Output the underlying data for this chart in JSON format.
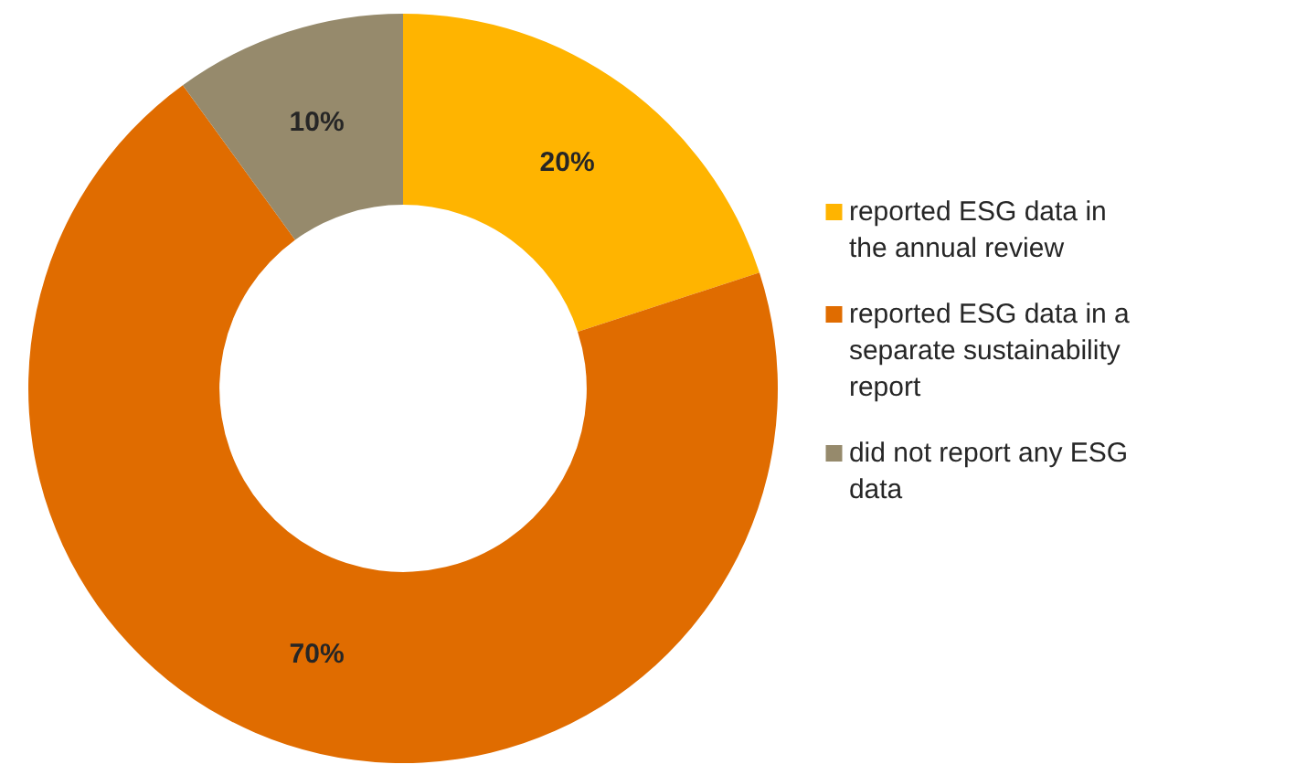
{
  "chart_data": {
    "type": "donut",
    "categories": [
      "reported ESG data in the annual review",
      "reported ESG data in a separate sustainability report",
      "did not report any ESG data"
    ],
    "values": [
      20,
      70,
      10
    ],
    "colors": [
      "#ffb400",
      "#e06c00",
      "#968a6c"
    ],
    "value_labels": [
      "20%",
      "70%",
      "10%"
    ],
    "legend": "right"
  }
}
